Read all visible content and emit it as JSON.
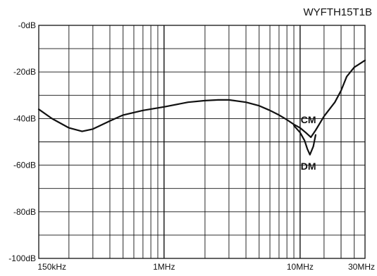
{
  "chart_data": {
    "type": "line",
    "title": "WYFTH15T1B",
    "xlabel": "",
    "ylabel": "",
    "xscale": "log",
    "xlim_mhz": [
      0.12,
      30
    ],
    "ylim": [
      -100,
      0
    ],
    "grid": true,
    "y_ticks": [
      {
        "value": 0,
        "label": "-0dB"
      },
      {
        "value": -20,
        "label": "-20dB"
      },
      {
        "value": -40,
        "label": "-40dB"
      },
      {
        "value": -60,
        "label": "-60dB"
      },
      {
        "value": -80,
        "label": "-80dB"
      },
      {
        "value": -100,
        "label": "-100dB"
      }
    ],
    "x_ticks": [
      {
        "value": 0.15,
        "label": "150kHz"
      },
      {
        "value": 1,
        "label": "1MHz"
      },
      {
        "value": 10,
        "label": "10MHz"
      },
      {
        "value": 30,
        "label": "30MHz"
      }
    ],
    "series": [
      {
        "name": "CM",
        "color": "#111111",
        "x": [
          0.12,
          0.15,
          0.2,
          0.25,
          0.3,
          0.4,
          0.5,
          0.7,
          1.0,
          1.5,
          2.0,
          2.5,
          3.0,
          4.0,
          5.0,
          6.0,
          7.0,
          8.0,
          9.0,
          10.0,
          11.0,
          12.0,
          13.0,
          15.0,
          18.0,
          20.0,
          22.0,
          25.0,
          30.0
        ],
        "y": [
          -36,
          -40,
          -44,
          -45.5,
          -44.5,
          -41,
          -38.5,
          -36.5,
          -35,
          -33,
          -32.3,
          -32,
          -32,
          -33,
          -34.5,
          -36.5,
          -38.5,
          -40.5,
          -42.5,
          -44,
          -46,
          -48,
          -45,
          -39,
          -33,
          -28,
          -22,
          -18,
          -15
        ]
      },
      {
        "name": "DM",
        "color": "#111111",
        "x": [
          9.0,
          10.0,
          10.8,
          11.3,
          11.8,
          12.5,
          13.0
        ],
        "y": [
          -43,
          -46,
          -49.5,
          -53,
          -55.5,
          -52,
          -47
        ]
      }
    ],
    "annotations": [
      {
        "text": "CM",
        "x": 11.5,
        "y": -42
      },
      {
        "text": "DM",
        "x": 11.5,
        "y": -62
      }
    ]
  }
}
